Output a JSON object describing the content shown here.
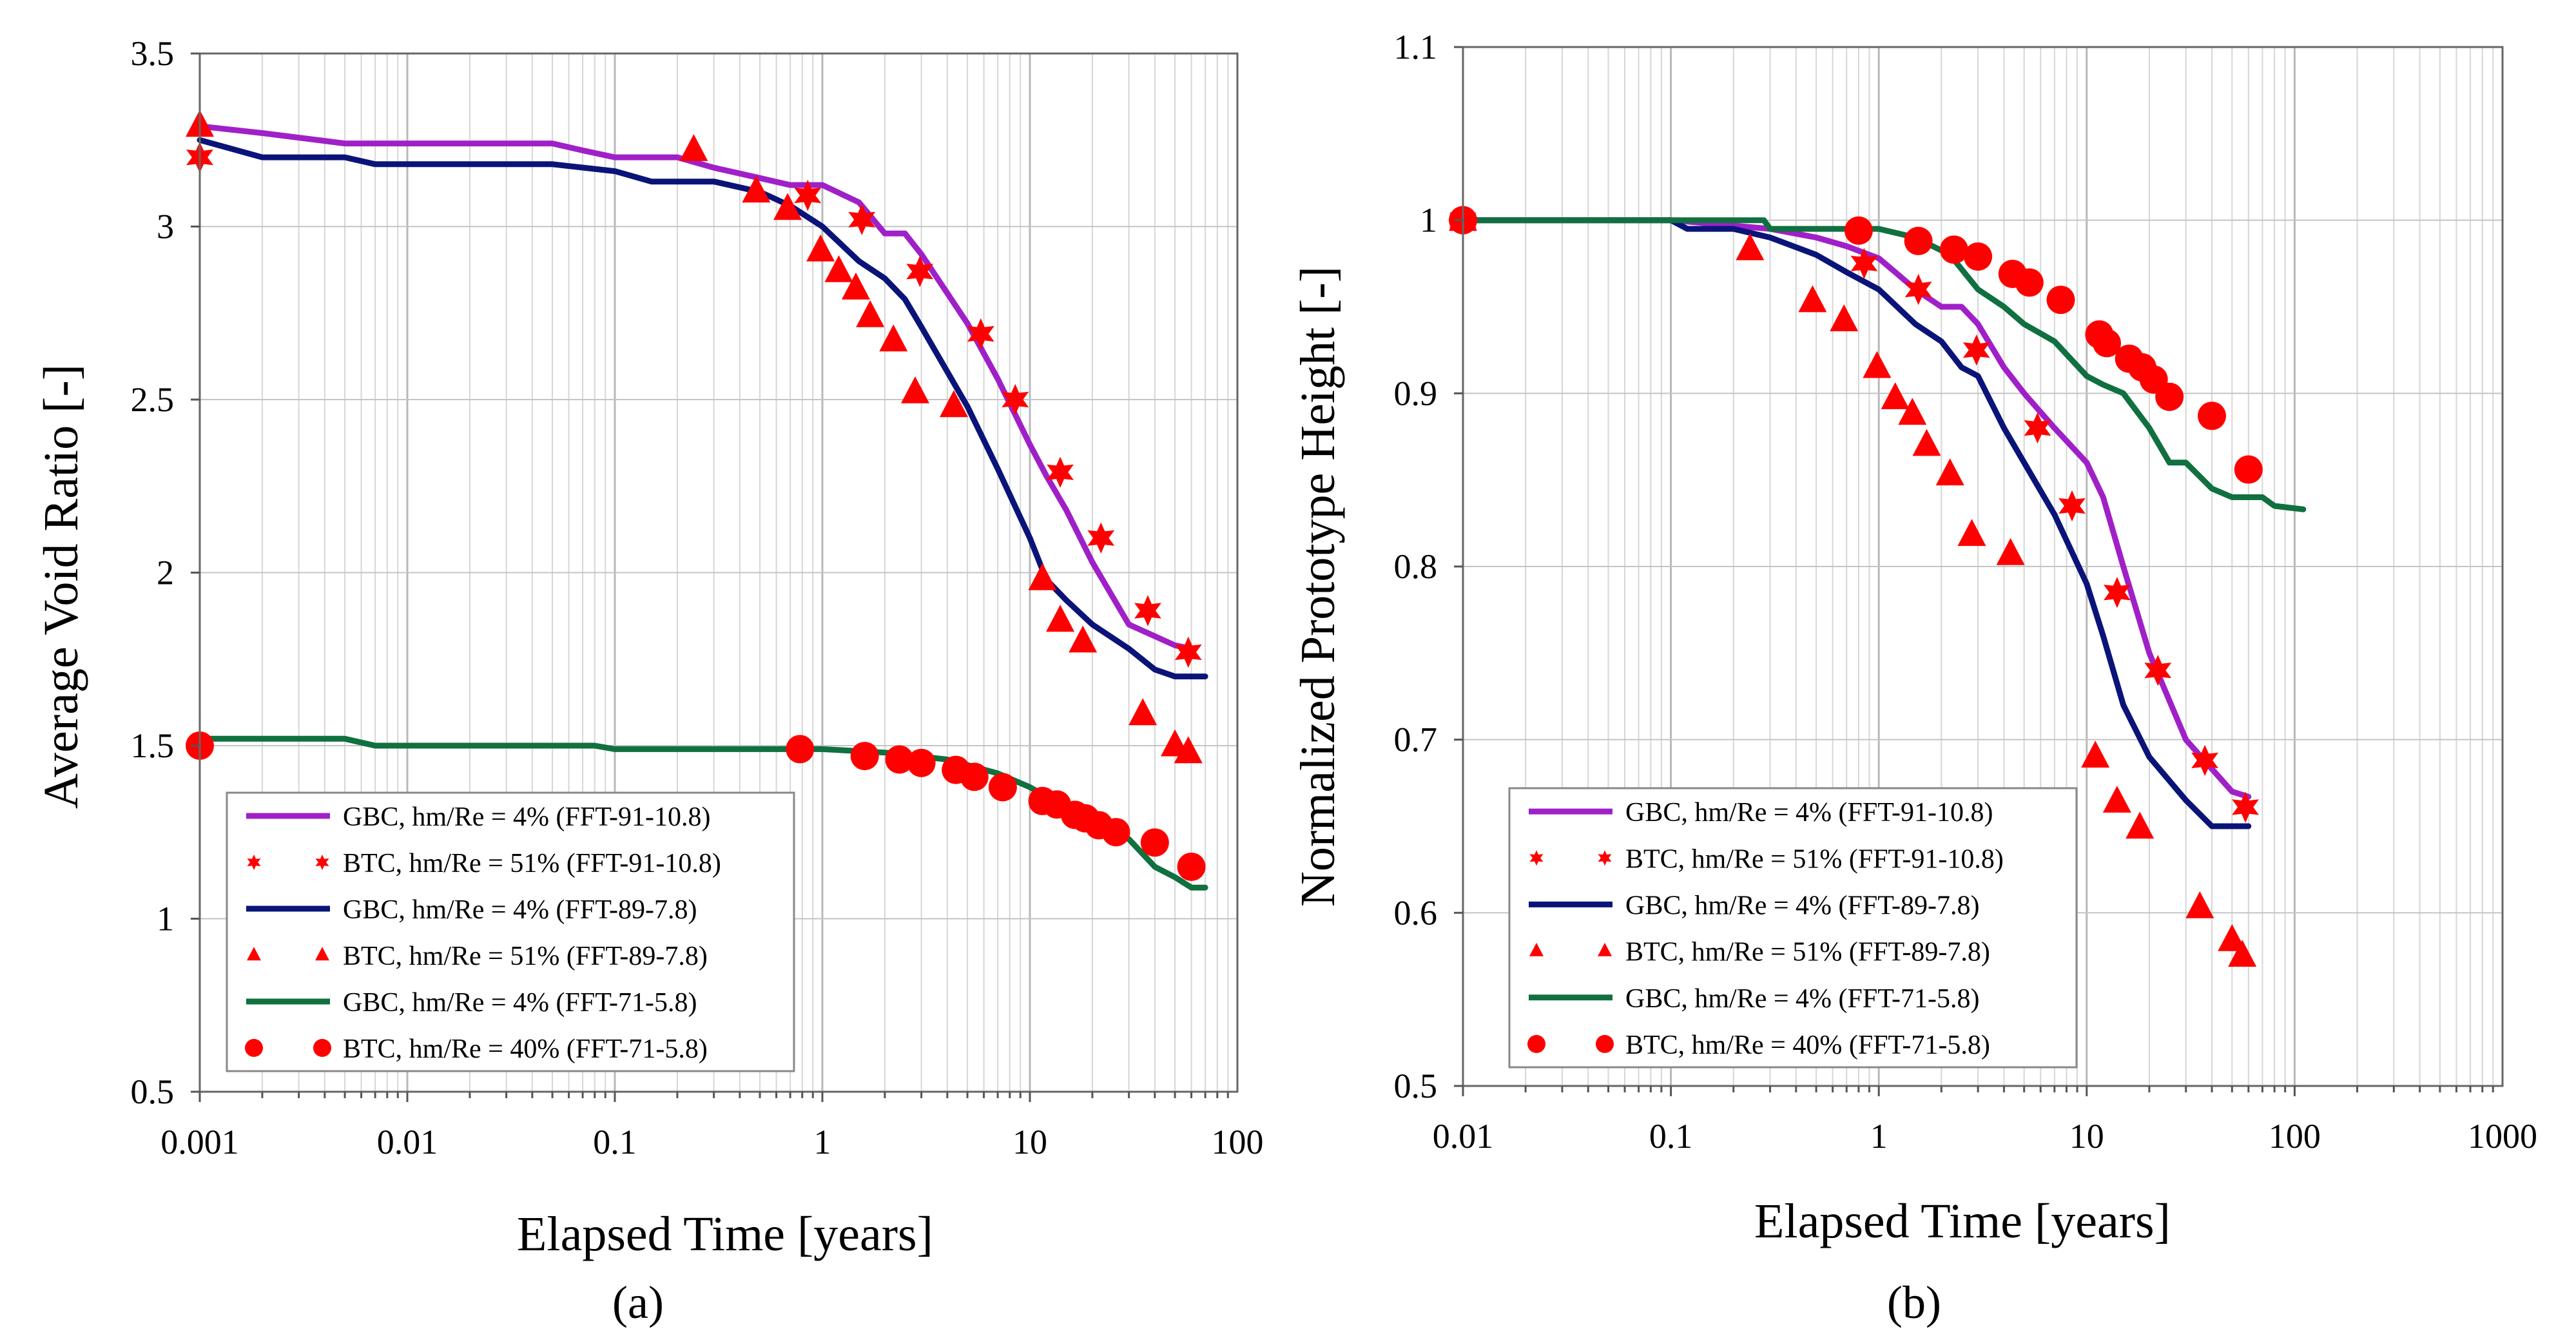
{
  "chart_data": [
    {
      "type": "line",
      "panel_label": "(a)",
      "xlabel": "Elapsed Time [years]",
      "ylabel": "Average Void Ratio [-]",
      "xscale": "log",
      "xlim": [
        0.001,
        100
      ],
      "ylim": [
        0.5,
        3.5
      ],
      "x_ticks": [
        0.001,
        0.01,
        0.1,
        1,
        10,
        100
      ],
      "x_tick_labels": [
        "0.001",
        "0.01",
        "0.1",
        "1",
        "10",
        "100"
      ],
      "y_ticks": [
        0.5,
        1,
        1.5,
        2,
        2.5,
        3,
        3.5
      ],
      "y_tick_labels": [
        "0.5",
        "1",
        "1.5",
        "2",
        "2.5",
        "3",
        "3.5"
      ],
      "grid": true,
      "legend_position": "bottom-left",
      "series": [
        {
          "name": "GBC, hm/Re = 4% (FFT-91-10.8)",
          "kind": "line",
          "color": "#a020c8",
          "points": [
            [
              0.001,
              3.29
            ],
            [
              0.002,
              3.27
            ],
            [
              0.005,
              3.24
            ],
            [
              0.01,
              3.24
            ],
            [
              0.02,
              3.24
            ],
            [
              0.05,
              3.24
            ],
            [
              0.07,
              3.22
            ],
            [
              0.1,
              3.2
            ],
            [
              0.2,
              3.2
            ],
            [
              0.3,
              3.17
            ],
            [
              0.5,
              3.14
            ],
            [
              0.7,
              3.12
            ],
            [
              1,
              3.12
            ],
            [
              1.5,
              3.07
            ],
            [
              2,
              2.98
            ],
            [
              2.5,
              2.98
            ],
            [
              3,
              2.92
            ],
            [
              5,
              2.72
            ],
            [
              7,
              2.56
            ],
            [
              10,
              2.37
            ],
            [
              12,
              2.28
            ],
            [
              15,
              2.18
            ],
            [
              20,
              2.03
            ],
            [
              30,
              1.85
            ],
            [
              50,
              1.79
            ],
            [
              60,
              1.78
            ]
          ]
        },
        {
          "name": "BTC, hm/Re = 51% (FFT-91-10.8)",
          "kind": "scatter",
          "marker": "star",
          "color": "#ff0000",
          "points": [
            [
              0.001,
              3.2
            ],
            [
              0.85,
              3.09
            ],
            [
              1.55,
              3.02
            ],
            [
              2.95,
              2.87
            ],
            [
              5.8,
              2.69
            ],
            [
              8.5,
              2.5
            ],
            [
              14,
              2.29
            ],
            [
              22,
              2.1
            ],
            [
              37,
              1.89
            ],
            [
              58,
              1.77
            ]
          ]
        },
        {
          "name": "GBC, hm/Re = 4% (FFT-89-7.8)",
          "kind": "line",
          "color": "#0a1478",
          "points": [
            [
              0.001,
              3.25
            ],
            [
              0.002,
              3.2
            ],
            [
              0.005,
              3.2
            ],
            [
              0.007,
              3.18
            ],
            [
              0.01,
              3.18
            ],
            [
              0.02,
              3.18
            ],
            [
              0.05,
              3.18
            ],
            [
              0.1,
              3.16
            ],
            [
              0.15,
              3.13
            ],
            [
              0.3,
              3.13
            ],
            [
              0.5,
              3.1
            ],
            [
              0.7,
              3.06
            ],
            [
              1,
              3.0
            ],
            [
              1.5,
              2.9
            ],
            [
              2,
              2.85
            ],
            [
              2.5,
              2.79
            ],
            [
              3,
              2.71
            ],
            [
              5,
              2.48
            ],
            [
              7,
              2.3
            ],
            [
              10,
              2.1
            ],
            [
              12,
              1.98
            ],
            [
              15,
              1.92
            ],
            [
              20,
              1.85
            ],
            [
              30,
              1.78
            ],
            [
              40,
              1.72
            ],
            [
              50,
              1.7
            ],
            [
              70,
              1.7
            ]
          ]
        },
        {
          "name": "BTC, hm/Re = 51% (FFT-89-7.8)",
          "kind": "scatter",
          "marker": "triangle",
          "color": "#ff0000",
          "points": [
            [
              0.001,
              3.29
            ],
            [
              0.24,
              3.22
            ],
            [
              0.48,
              3.1
            ],
            [
              0.68,
              3.05
            ],
            [
              0.98,
              2.93
            ],
            [
              1.2,
              2.87
            ],
            [
              1.45,
              2.82
            ],
            [
              1.7,
              2.74
            ],
            [
              2.2,
              2.67
            ],
            [
              2.8,
              2.52
            ],
            [
              4.3,
              2.48
            ],
            [
              11.5,
              1.98
            ],
            [
              14,
              1.86
            ],
            [
              18,
              1.8
            ],
            [
              35,
              1.59
            ],
            [
              50,
              1.5
            ],
            [
              58,
              1.48
            ]
          ]
        },
        {
          "name": "GBC, hm/Re = 4% (FFT-71-5.8)",
          "kind": "line",
          "color": "#107040",
          "points": [
            [
              0.001,
              1.52
            ],
            [
              0.005,
              1.52
            ],
            [
              0.007,
              1.5
            ],
            [
              0.02,
              1.5
            ],
            [
              0.08,
              1.5
            ],
            [
              0.1,
              1.49
            ],
            [
              0.5,
              1.49
            ],
            [
              1,
              1.49
            ],
            [
              2,
              1.48
            ],
            [
              4,
              1.46
            ],
            [
              7,
              1.42
            ],
            [
              10,
              1.38
            ],
            [
              15,
              1.32
            ],
            [
              20,
              1.3
            ],
            [
              30,
              1.23
            ],
            [
              40,
              1.15
            ],
            [
              50,
              1.12
            ],
            [
              60,
              1.09
            ],
            [
              70,
              1.09
            ]
          ]
        },
        {
          "name": "BTC, hm/Re = 40% (FFT-71-5.8)",
          "kind": "scatter",
          "marker": "circle",
          "color": "#ff0000",
          "points": [
            [
              0.001,
              1.5
            ],
            [
              0.78,
              1.49
            ],
            [
              1.6,
              1.47
            ],
            [
              2.35,
              1.46
            ],
            [
              3.0,
              1.45
            ],
            [
              4.4,
              1.43
            ],
            [
              5.4,
              1.41
            ],
            [
              7.4,
              1.38
            ],
            [
              11.5,
              1.34
            ],
            [
              13.5,
              1.33
            ],
            [
              16.5,
              1.3
            ],
            [
              18.5,
              1.29
            ],
            [
              21.5,
              1.27
            ],
            [
              26,
              1.25
            ],
            [
              40,
              1.22
            ],
            [
              60,
              1.15
            ]
          ]
        }
      ]
    },
    {
      "type": "line",
      "panel_label": "(b)",
      "xlabel": "Elapsed Time [years]",
      "ylabel": "Normalized Prototype Height [-]",
      "xscale": "log",
      "xlim": [
        0.01,
        1000
      ],
      "ylim": [
        0.5,
        1.1
      ],
      "x_ticks": [
        0.01,
        0.1,
        1,
        10,
        100,
        1000
      ],
      "x_tick_labels": [
        "0.01",
        "0.1",
        "1",
        "10",
        "100",
        "1000"
      ],
      "y_ticks": [
        0.5,
        0.6,
        0.7,
        0.8,
        0.9,
        1,
        1.1
      ],
      "y_tick_labels": [
        "0.5",
        "0.6",
        "0.7",
        "0.8",
        "0.9",
        "1",
        "1.1"
      ],
      "grid": true,
      "legend_position": "bottom-left",
      "series": [
        {
          "name": "GBC, hm/Re = 4% (FFT-91-10.8)",
          "kind": "line",
          "color": "#a020c8",
          "points": [
            [
              0.01,
              1.0
            ],
            [
              0.1,
              1.0
            ],
            [
              0.3,
              0.995
            ],
            [
              0.5,
              0.99
            ],
            [
              0.7,
              0.985
            ],
            [
              1,
              0.978
            ],
            [
              1.2,
              0.97
            ],
            [
              1.5,
              0.96
            ],
            [
              2,
              0.95
            ],
            [
              2.5,
              0.95
            ],
            [
              3,
              0.94
            ],
            [
              4,
              0.915
            ],
            [
              5,
              0.9
            ],
            [
              7,
              0.88
            ],
            [
              10,
              0.86
            ],
            [
              12,
              0.84
            ],
            [
              15,
              0.8
            ],
            [
              20,
              0.75
            ],
            [
              30,
              0.7
            ],
            [
              50,
              0.67
            ],
            [
              60,
              0.667
            ]
          ]
        },
        {
          "name": "BTC, hm/Re = 51% (FFT-91-10.8)",
          "kind": "scatter",
          "marker": "star",
          "color": "#ff0000",
          "points": [
            [
              0.01,
              1.0
            ],
            [
              0.85,
              0.975
            ],
            [
              1.55,
              0.96
            ],
            [
              2.95,
              0.925
            ],
            [
              5.8,
              0.88
            ],
            [
              8.5,
              0.835
            ],
            [
              14,
              0.785
            ],
            [
              22,
              0.74
            ],
            [
              37,
              0.688
            ],
            [
              58,
              0.661
            ]
          ]
        },
        {
          "name": "GBC, hm/Re = 4% (FFT-89-7.8)",
          "kind": "line",
          "color": "#0a1478",
          "points": [
            [
              0.01,
              1.0
            ],
            [
              0.1,
              1.0
            ],
            [
              0.12,
              0.995
            ],
            [
              0.2,
              0.995
            ],
            [
              0.3,
              0.99
            ],
            [
              0.5,
              0.98
            ],
            [
              0.7,
              0.97
            ],
            [
              1,
              0.96
            ],
            [
              1.5,
              0.94
            ],
            [
              2,
              0.93
            ],
            [
              2.5,
              0.915
            ],
            [
              3,
              0.91
            ],
            [
              4,
              0.88
            ],
            [
              5,
              0.86
            ],
            [
              7,
              0.83
            ],
            [
              10,
              0.79
            ],
            [
              12,
              0.76
            ],
            [
              15,
              0.72
            ],
            [
              20,
              0.69
            ],
            [
              30,
              0.665
            ],
            [
              40,
              0.65
            ],
            [
              60,
              0.65
            ]
          ]
        },
        {
          "name": "BTC, hm/Re = 51% (FFT-89-7.8)",
          "kind": "scatter",
          "marker": "triangle",
          "color": "#ff0000",
          "points": [
            [
              0.01,
              1.0
            ],
            [
              0.24,
              0.983
            ],
            [
              0.48,
              0.953
            ],
            [
              0.68,
              0.942
            ],
            [
              0.98,
              0.915
            ],
            [
              1.2,
              0.897
            ],
            [
              1.45,
              0.888
            ],
            [
              1.7,
              0.87
            ],
            [
              2.2,
              0.853
            ],
            [
              2.8,
              0.818
            ],
            [
              4.3,
              0.807
            ],
            [
              11,
              0.69
            ],
            [
              14,
              0.664
            ],
            [
              18,
              0.649
            ],
            [
              35,
              0.603
            ],
            [
              50,
              0.584
            ],
            [
              56,
              0.575
            ]
          ]
        },
        {
          "name": "GBC, hm/Re = 4% (FFT-71-5.8)",
          "kind": "line",
          "color": "#107040",
          "points": [
            [
              0.01,
              1.0
            ],
            [
              0.1,
              1.0
            ],
            [
              0.28,
              1.0
            ],
            [
              0.3,
              0.995
            ],
            [
              1,
              0.995
            ],
            [
              1.5,
              0.99
            ],
            [
              2.2,
              0.98
            ],
            [
              3,
              0.96
            ],
            [
              4,
              0.95
            ],
            [
              5,
              0.94
            ],
            [
              7,
              0.93
            ],
            [
              10,
              0.91
            ],
            [
              12,
              0.905
            ],
            [
              15,
              0.9
            ],
            [
              20,
              0.88
            ],
            [
              25,
              0.86
            ],
            [
              30,
              0.86
            ],
            [
              40,
              0.845
            ],
            [
              50,
              0.84
            ],
            [
              70,
              0.84
            ],
            [
              80,
              0.835
            ],
            [
              110,
              0.833
            ]
          ]
        },
        {
          "name": "BTC, hm/Re = 40% (FFT-71-5.8)",
          "kind": "scatter",
          "marker": "circle",
          "color": "#ff0000",
          "points": [
            [
              0.01,
              1.0
            ],
            [
              0.8,
              0.994
            ],
            [
              1.55,
              0.988
            ],
            [
              2.3,
              0.983
            ],
            [
              3.0,
              0.979
            ],
            [
              4.4,
              0.969
            ],
            [
              5.3,
              0.964
            ],
            [
              7.5,
              0.954
            ],
            [
              11.5,
              0.934
            ],
            [
              12.5,
              0.929
            ],
            [
              16,
              0.92
            ],
            [
              18.5,
              0.915
            ],
            [
              21,
              0.908
            ],
            [
              25,
              0.898
            ],
            [
              40,
              0.887
            ],
            [
              60,
              0.856
            ]
          ]
        }
      ]
    }
  ]
}
